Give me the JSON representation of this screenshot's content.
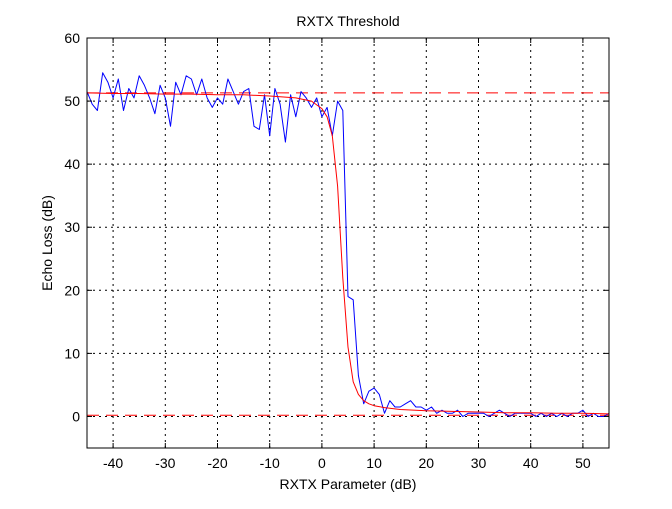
{
  "chart_data": {
    "type": "line",
    "title": "RXTX Threshold",
    "xlabel": "RXTX Parameter (dB)",
    "ylabel": "Echo Loss (dB)",
    "xlim": [
      -45,
      55
    ],
    "ylim": [
      -5,
      60
    ],
    "xticks": [
      -40,
      -30,
      -20,
      -10,
      0,
      10,
      20,
      30,
      40,
      50
    ],
    "yticks": [
      0,
      10,
      20,
      30,
      40,
      50,
      60
    ],
    "grid": true,
    "grid_style": "dotted",
    "legend": "none",
    "reference_lines": [
      {
        "y": 51.3,
        "style": "dashed",
        "color": "#ff0000"
      },
      {
        "y": 0.2,
        "style": "dashed",
        "color": "#ff0000"
      }
    ],
    "series": [
      {
        "color": "#0000ff",
        "style": "measured",
        "x": [
          -45,
          -44,
          -43,
          -42,
          -41,
          -40,
          -39,
          -38,
          -37,
          -36,
          -35,
          -34,
          -33,
          -32,
          -31,
          -30,
          -29,
          -28,
          -27,
          -26,
          -25,
          -24,
          -23,
          -22,
          -21,
          -20,
          -19,
          -18,
          -17,
          -16,
          -15,
          -14,
          -13,
          -12,
          -11,
          -10,
          -9,
          -8,
          -7,
          -6,
          -5,
          -4,
          -3,
          -2,
          -1,
          0,
          1,
          2,
          3,
          4,
          5,
          6,
          7,
          8,
          9,
          10,
          11,
          12,
          13,
          14,
          15,
          16,
          17,
          18,
          19,
          20,
          21,
          22,
          23,
          24,
          25,
          26,
          27,
          28,
          29,
          30,
          31,
          32,
          33,
          34,
          35,
          36,
          37,
          38,
          39,
          40,
          41,
          42,
          43,
          44,
          45,
          46,
          47,
          48,
          49,
          50,
          51,
          52,
          53,
          54,
          55
        ],
        "y": [
          51.5,
          49.5,
          48.5,
          54.5,
          53.0,
          50.5,
          53.5,
          48.5,
          52.0,
          50.5,
          54.0,
          52.5,
          50.5,
          48.0,
          52.5,
          50.5,
          46.0,
          53.0,
          51.0,
          54.0,
          53.5,
          51.0,
          53.5,
          50.5,
          49.0,
          50.5,
          49.5,
          53.5,
          51.5,
          49.5,
          51.5,
          52.0,
          46.0,
          45.5,
          51.0,
          44.5,
          52.0,
          49.5,
          43.5,
          51.0,
          47.5,
          51.5,
          50.5,
          49.0,
          50.5,
          47.5,
          49.0,
          44.5,
          50.0,
          48.5,
          19.0,
          18.5,
          6.5,
          2.0,
          4.0,
          4.5,
          3.5,
          0.5,
          2.5,
          1.5,
          1.5,
          2.0,
          2.5,
          1.5,
          1.5,
          1.0,
          1.5,
          0.5,
          1.0,
          0.5,
          0.5,
          1.0,
          0.0,
          0.5,
          0.5,
          0.5,
          0.5,
          0.0,
          0.5,
          1.0,
          0.5,
          0.0,
          0.5,
          0.5,
          0.5,
          0.5,
          0.0,
          0.5,
          0.0,
          0.5,
          0.0,
          0.5,
          0.0,
          0.5,
          0.5,
          1.0,
          0.0,
          0.5,
          0.0,
          0.0,
          0.5
        ]
      },
      {
        "color": "#ff0000",
        "style": "fit",
        "x": [
          -45,
          -40,
          -35,
          -30,
          -25,
          -20,
          -15,
          -10,
          -5,
          -2,
          0,
          1,
          2,
          3,
          4,
          5,
          6,
          7,
          8,
          9,
          10,
          12,
          15,
          20,
          25,
          30,
          35,
          40,
          45,
          50,
          55
        ],
        "y": [
          51.3,
          51.2,
          51.2,
          51.1,
          51.1,
          51.0,
          51.0,
          50.8,
          50.5,
          50.0,
          48.8,
          47.5,
          44.5,
          36.5,
          22.0,
          11.0,
          5.5,
          3.5,
          2.5,
          2.0,
          1.7,
          1.4,
          1.1,
          0.9,
          0.8,
          0.7,
          0.6,
          0.6,
          0.5,
          0.5,
          0.4
        ]
      }
    ]
  }
}
